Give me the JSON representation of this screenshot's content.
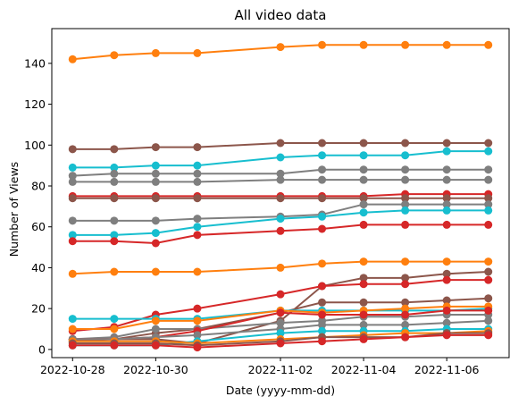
{
  "chart_data": {
    "type": "line",
    "title": "All video data",
    "xlabel": "Date (yyyy-mm-dd)",
    "ylabel": "Number of Views",
    "x": [
      "2022-10-28",
      "2022-10-29",
      "2022-10-30",
      "2022-10-31",
      "2022-11-02",
      "2022-11-03",
      "2022-11-04",
      "2022-11-05",
      "2022-11-06",
      "2022-11-07"
    ],
    "xticks": [
      "2022-10-28",
      "2022-10-30",
      "2022-11-02",
      "2022-11-04",
      "2022-11-06"
    ],
    "xlim": [
      "2022-10-27T12:00",
      "2022-11-07T12:00"
    ],
    "ylim": [
      -4,
      157
    ],
    "yticks": [
      0,
      20,
      40,
      60,
      80,
      100,
      120,
      140
    ],
    "grid": false,
    "series": [
      {
        "color": "#ff7f0e",
        "values": [
          142,
          144,
          145,
          145,
          148,
          149,
          149,
          149,
          149,
          149
        ]
      },
      {
        "color": "#8c564b",
        "values": [
          98,
          98,
          99,
          99,
          101,
          101,
          101,
          101,
          101,
          101
        ]
      },
      {
        "color": "#17becf",
        "values": [
          89,
          89,
          90,
          90,
          94,
          95,
          95,
          95,
          97,
          97
        ]
      },
      {
        "color": "#7f7f7f",
        "values": [
          85,
          86,
          86,
          86,
          86,
          88,
          88,
          88,
          88,
          88
        ]
      },
      {
        "color": "#7f7f7f",
        "values": [
          82,
          82,
          82,
          82,
          83,
          83,
          83,
          83,
          83,
          83
        ]
      },
      {
        "color": "#d62728",
        "values": [
          75,
          75,
          75,
          75,
          75,
          75,
          75,
          76,
          76,
          76
        ]
      },
      {
        "color": "#8c564b",
        "values": [
          74,
          74,
          74,
          74,
          74,
          74,
          74,
          74,
          74,
          74
        ]
      },
      {
        "color": "#8c564b",
        "values": [
          5,
          5,
          5,
          3,
          14,
          31,
          35,
          35,
          37,
          38
        ]
      },
      {
        "color": "#7f7f7f",
        "values": [
          63,
          63,
          63,
          64,
          65,
          66,
          71,
          71,
          71,
          71
        ]
      },
      {
        "color": "#17becf",
        "values": [
          56,
          56,
          57,
          60,
          64,
          65,
          67,
          68,
          68,
          68
        ]
      },
      {
        "color": "#d62728",
        "values": [
          53,
          53,
          52,
          56,
          58,
          59,
          61,
          61,
          61,
          61
        ]
      },
      {
        "color": "#ff7f0e",
        "values": [
          37,
          38,
          38,
          38,
          40,
          42,
          43,
          43,
          43,
          43
        ]
      },
      {
        "color": "#d62728",
        "values": [
          9,
          11,
          17,
          20,
          27,
          31,
          32,
          32,
          34,
          34
        ]
      },
      {
        "color": "#8c564b",
        "values": [
          4,
          5,
          8,
          10,
          18,
          23,
          23,
          23,
          24,
          25
        ]
      },
      {
        "color": "#7f7f7f",
        "values": [
          5,
          6,
          10,
          10,
          13,
          14,
          16,
          16,
          17,
          17
        ]
      },
      {
        "color": "#17becf",
        "values": [
          15,
          15,
          15,
          15,
          19,
          19,
          19,
          19,
          19,
          20
        ]
      },
      {
        "color": "#ff7f0e",
        "values": [
          10,
          10,
          14,
          14,
          19,
          18,
          19,
          20,
          21,
          21
        ]
      },
      {
        "color": "#d62728",
        "values": [
          5,
          5,
          6,
          9,
          18,
          17,
          17,
          17,
          19,
          19
        ]
      },
      {
        "color": "#7f7f7f",
        "values": [
          5,
          5,
          6,
          7,
          10,
          12,
          12,
          12,
          13,
          14
        ]
      },
      {
        "color": "#17becf",
        "values": [
          2,
          2,
          2,
          4,
          8,
          9,
          9,
          9,
          10,
          10
        ]
      },
      {
        "color": "#ff7f0e",
        "values": [
          4,
          4,
          4,
          3,
          5,
          6,
          7,
          8,
          8,
          9
        ]
      },
      {
        "color": "#8c564b",
        "values": [
          3,
          3,
          3,
          2,
          4,
          6,
          6,
          6,
          8,
          8
        ]
      },
      {
        "color": "#d62728",
        "values": [
          2,
          2,
          2,
          1,
          3,
          4,
          5,
          6,
          7,
          7
        ]
      }
    ]
  }
}
